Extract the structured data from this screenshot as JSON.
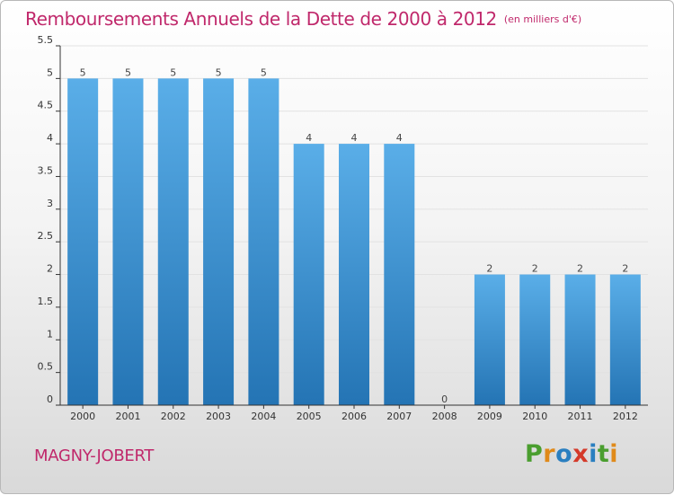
{
  "title": "Remboursements Annuels de la Dette de 2000 à 2012",
  "subtitle": "(en milliers d'€)",
  "city": "MAGNY-JOBERT",
  "logo": {
    "text": "Proxiti",
    "letters": [
      "P",
      "r",
      "o",
      "x",
      "i",
      "t",
      "i"
    ],
    "colors": [
      "#4a9e2f",
      "#e08a1a",
      "#2a7fc0",
      "#d43a2a",
      "#2a7fc0",
      "#4a9e2f",
      "#e08a1a"
    ]
  },
  "colors": {
    "title": "#c0286b",
    "bar_top": "#5aaee8",
    "bar_bottom": "#2474b4",
    "axis": "#333333",
    "grid": "#e2e2e2"
  },
  "chart_data": {
    "type": "bar",
    "title": "Remboursements Annuels de la Dette de 2000 à 2012",
    "subtitle": "(en milliers d'€)",
    "categories": [
      "2000",
      "2001",
      "2002",
      "2003",
      "2004",
      "2005",
      "2006",
      "2007",
      "2008",
      "2009",
      "2010",
      "2011",
      "2012"
    ],
    "values": [
      5,
      5,
      5,
      5,
      5,
      4,
      4,
      4,
      0,
      2,
      2,
      2,
      2
    ],
    "value_labels": [
      "5",
      "5",
      "5",
      "5",
      "5",
      "4",
      "4",
      "4",
      "0",
      "2",
      "2",
      "2",
      "2"
    ],
    "y_ticks": [
      0,
      0.5,
      1,
      1.5,
      2,
      2.5,
      3,
      3.5,
      4,
      4.5,
      5,
      5.5
    ],
    "y_tick_labels": [
      "0",
      "0.5",
      "1",
      "1.5",
      "2",
      "2.5",
      "3",
      "3.5",
      "4",
      "4.5",
      "5",
      "5.5"
    ],
    "ylim": [
      0,
      5.5
    ],
    "grid": true
  }
}
